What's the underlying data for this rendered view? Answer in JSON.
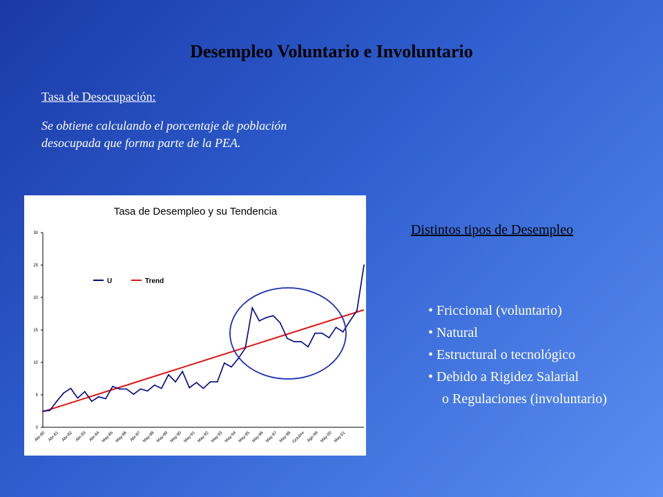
{
  "slide": {
    "title": "Desempleo Voluntario e Involuntario",
    "definition_heading": "Tasa de Desocupación:",
    "definition_text": "Se obtiene calculando el porcentaje de población desocupada que forma parte de la PEA.",
    "types_heading": "Distintos tipos de Desempleo",
    "types": [
      "• Friccional (voluntario)",
      "• Natural",
      "• Estructural o tecnológico",
      "• Debido a Rigidez Salarial",
      "o Regulaciones (involuntario)"
    ]
  },
  "colors": {
    "u_series": "#000080",
    "trend_series": "#e01010",
    "ellipse": "#1a2eb0"
  },
  "chart_data": {
    "type": "line",
    "title": "Tasa de Desempleo y su Tendencia",
    "xlabel": "",
    "ylabel": "",
    "ylim": [
      0,
      30
    ],
    "yticks": [
      "0",
      "5",
      "10",
      "15",
      "20",
      "25",
      "30"
    ],
    "xtick_labels": [
      "Abr-80",
      "Abr-81",
      "Abr-82",
      "Abr-83",
      "Abr-84",
      "May-85",
      "May-86",
      "Abr-87",
      "May-88",
      "May-89",
      "May-90",
      "May-91",
      "May-92",
      "May-93",
      "May-94",
      "May-95",
      "May-96",
      "May-97",
      "May-98",
      "Octubre",
      "Ago-99",
      "May-00",
      "May-01"
    ],
    "grid": false,
    "legend_position": "top-left",
    "series": [
      {
        "name": "U",
        "values": [
          2.5,
          2.6,
          4.0,
          5.3,
          6.0,
          4.5,
          5.5,
          4.0,
          4.7,
          4.4,
          6.3,
          5.9,
          5.9,
          5.1,
          5.9,
          5.6,
          6.5,
          6.0,
          8.1,
          7.0,
          8.6,
          6.1,
          6.9,
          6.0,
          7.0,
          7.0,
          9.9,
          9.3,
          10.6,
          12.2,
          18.4,
          16.4,
          16.9,
          17.2,
          16.1,
          13.7,
          13.2,
          13.2,
          12.4,
          14.5,
          14.5,
          13.8,
          15.4,
          14.7,
          16.4,
          18.0,
          25.0
        ]
      },
      {
        "name": "Trend",
        "values": [
          2.4,
          18.1
        ]
      }
    ],
    "annotations": [
      {
        "type": "ellipse",
        "label": ""
      }
    ]
  }
}
